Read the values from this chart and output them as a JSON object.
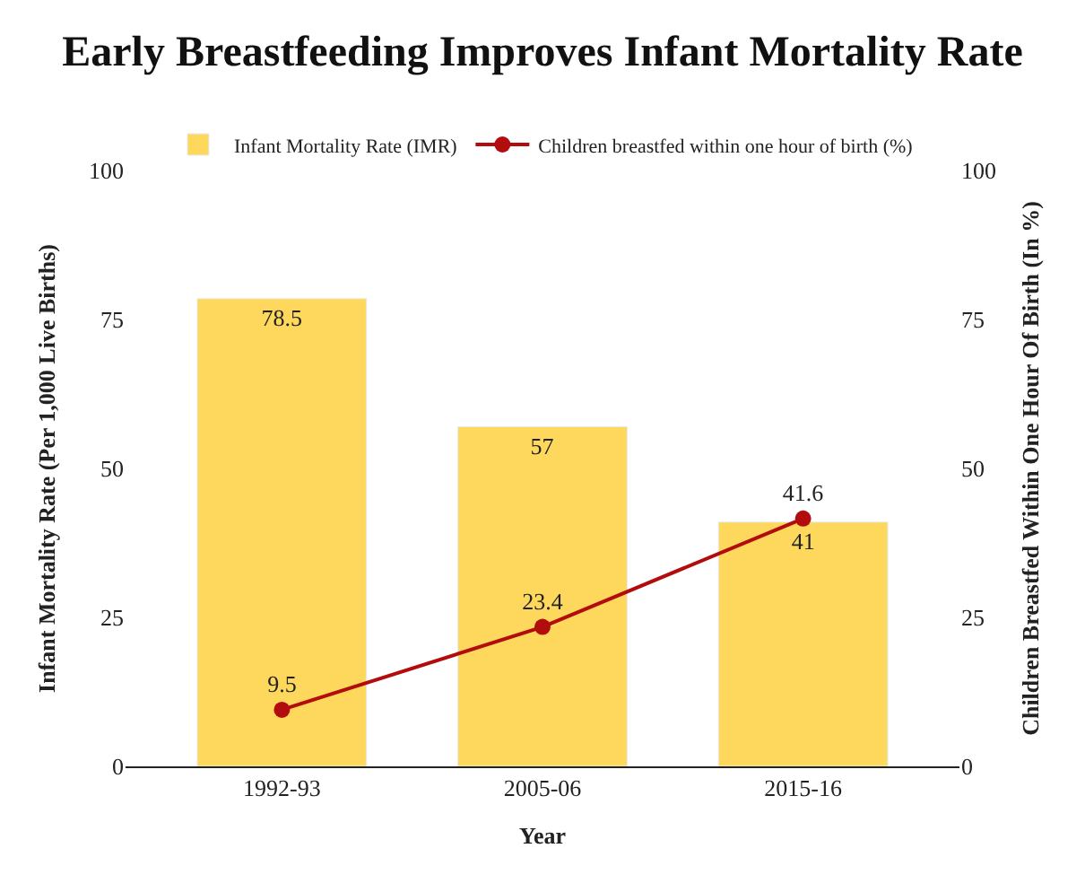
{
  "chart_data": {
    "type": "bar",
    "title": "Early Breastfeeding Improves Infant Mortality Rate",
    "xlabel": "Year",
    "ylabel": "Infant Mortality Rate (Per 1,000 Live Births)",
    "y2label": "Children Breastfed Within One Hour Of Birth (In %)",
    "categories": [
      "1992-93",
      "2005-06",
      "2015-16"
    ],
    "series": [
      {
        "name": "Infant Mortality Rate (IMR)",
        "color": "#fdd85d",
        "values": [
          78.5,
          57,
          41
        ]
      },
      {
        "name": "Children breastfed within one hour of birth (%)",
        "type": "line",
        "axis": "y2",
        "color": "#b30c0c",
        "values": [
          9.5,
          23.4,
          41.6
        ]
      }
    ],
    "ylim": [
      0,
      100
    ],
    "yticks": [
      0,
      25,
      50,
      75,
      100
    ],
    "y2lim": [
      0,
      100
    ],
    "y2ticks": [
      0,
      25,
      50,
      75,
      100
    ],
    "data_labels": true,
    "legend": "top",
    "marker": "circle",
    "line_style": "solid"
  }
}
